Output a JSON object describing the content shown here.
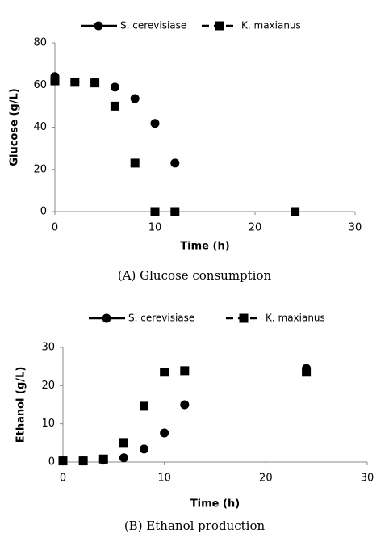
{
  "chart_data": [
    {
      "type": "line",
      "y_label": "Glucose (g/L)",
      "x_label": "Time (h)",
      "caption": "(A) Glucose consumption",
      "x": [
        0,
        2,
        4,
        6,
        8,
        10,
        12,
        24
      ],
      "series": [
        {
          "name": "S. cerevisiase",
          "color": "#000000",
          "line_style": "solid",
          "marker": "circle",
          "values": [
            64,
            61.5,
            61.3,
            59,
            53.6,
            41.8,
            23,
            0
          ]
        },
        {
          "name": "K. maxianus",
          "color": "#000000",
          "line_style": "dashed",
          "marker": "square",
          "values": [
            62,
            61.3,
            61,
            50,
            23,
            0,
            0,
            0
          ]
        }
      ],
      "xlim": [
        0,
        30
      ],
      "xticks": [
        0,
        10,
        20,
        30
      ],
      "ylim": [
        0,
        80
      ],
      "yticks": [
        0,
        20,
        40,
        60,
        80
      ],
      "grid": false,
      "legend": "top"
    },
    {
      "type": "line",
      "y_label": "Ethanol (g/L)",
      "x_label": "Time (h)",
      "caption": "(B) Ethanol production",
      "x": [
        0,
        2,
        4,
        6,
        8,
        10,
        12,
        24
      ],
      "series": [
        {
          "name": "S. cerevisiase",
          "color": "#000000",
          "line_style": "solid",
          "marker": "circle",
          "values": [
            0.3,
            0.3,
            0.5,
            1.1,
            3.4,
            7.6,
            15,
            24.5
          ]
        },
        {
          "name": "K. maxianus",
          "color": "#000000",
          "line_style": "dashed",
          "marker": "square",
          "values": [
            0.3,
            0.3,
            0.8,
            5.1,
            14.6,
            23.5,
            23.9,
            23.5
          ]
        }
      ],
      "xlim": [
        0,
        30
      ],
      "xticks": [
        0,
        10,
        20,
        30
      ],
      "ylim": [
        0,
        30
      ],
      "yticks": [
        0,
        10,
        20,
        30
      ],
      "grid": false,
      "legend": "top"
    }
  ]
}
